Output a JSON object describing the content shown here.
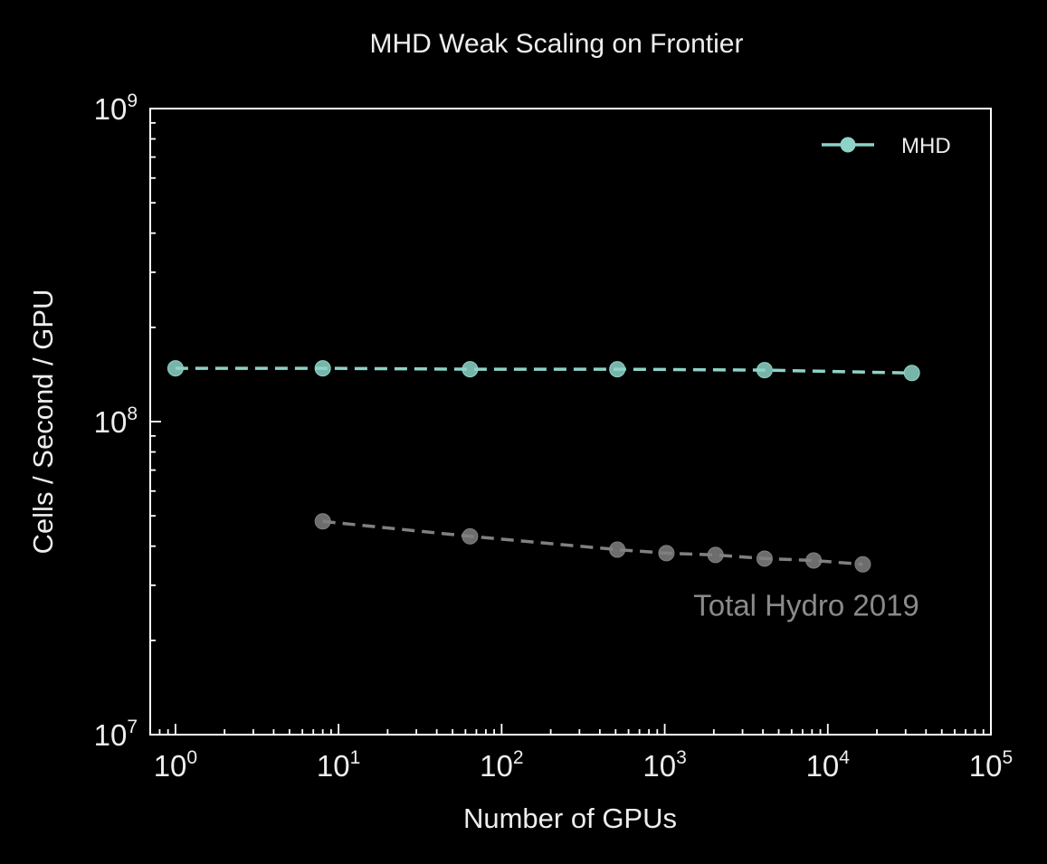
{
  "chart_data": {
    "type": "line",
    "title": "MHD Weak Scaling on Frontier",
    "xlabel": "Number of GPUs",
    "ylabel": "Cells / Second / GPU",
    "x_scale": "log",
    "y_scale": "log",
    "xlim": [
      0.7,
      100000
    ],
    "ylim": [
      10000000,
      1000000000
    ],
    "x_ticks": [
      {
        "value": 1,
        "base": "10",
        "exp": "0"
      },
      {
        "value": 10,
        "base": "10",
        "exp": "1"
      },
      {
        "value": 100,
        "base": "10",
        "exp": "2"
      },
      {
        "value": 1000,
        "base": "10",
        "exp": "3"
      },
      {
        "value": 10000,
        "base": "10",
        "exp": "4"
      },
      {
        "value": 100000,
        "base": "10",
        "exp": "5"
      }
    ],
    "y_ticks": [
      {
        "value": 10000000,
        "base": "10",
        "exp": "7"
      },
      {
        "value": 100000000,
        "base": "10",
        "exp": "8"
      },
      {
        "value": 1000000000,
        "base": "10",
        "exp": "9"
      }
    ],
    "grid": false,
    "legend_position": "top-right",
    "series": [
      {
        "name": "MHD",
        "color": "#8dd3c7",
        "style": "dashed",
        "marker": "circle",
        "in_legend": true,
        "x": [
          1,
          8,
          64,
          512,
          4096,
          32768
        ],
        "y": [
          148000000,
          148000000,
          147000000,
          147000000,
          146000000,
          143000000
        ]
      },
      {
        "color": "#808080",
        "style": "dashed",
        "marker": "circle",
        "in_legend": false,
        "x": [
          8,
          64,
          512,
          1024,
          2048,
          4096,
          8192,
          16384
        ],
        "y": [
          48000000,
          43000000,
          39000000,
          38000000,
          37500000,
          36500000,
          36000000,
          35000000
        ]
      }
    ],
    "annotations": [
      {
        "text": "Total Hydro 2019",
        "x": 1500,
        "y": 24000000,
        "color": "#8a8a8a"
      }
    ]
  }
}
